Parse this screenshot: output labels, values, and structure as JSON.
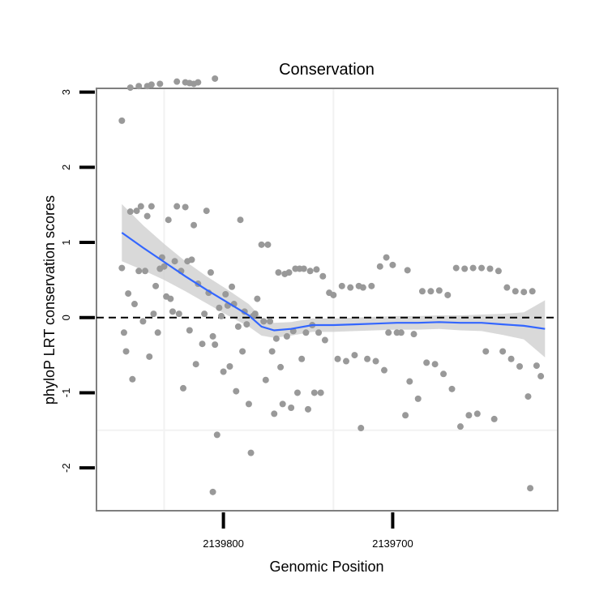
{
  "chart_data": {
    "type": "scatter",
    "title": "Conservation",
    "xlabel": "Genomic Position",
    "ylabel": "phyloP LRT conservation scores",
    "x_ticks": [
      {
        "label": "2139800",
        "value": 0.24
      },
      {
        "label": "2139700",
        "value": 0.64
      }
    ],
    "y_ticks": [
      -2,
      -1,
      0,
      1,
      2,
      3
    ],
    "xlim": [
      -0.06,
      1.03
    ],
    "ylim": [
      -2.57,
      3.05
    ],
    "reference_line": {
      "y": 0,
      "style": "dashed"
    },
    "colors": {
      "points": "#999999",
      "smooth_line": "#3366ff",
      "band": "#cccccc",
      "panel_border": "#7f7f7f",
      "grid": "#f2f2f2"
    },
    "points": [
      [
        0.0,
        2.62
      ],
      [
        0.02,
        3.06
      ],
      [
        0.04,
        3.08
      ],
      [
        0.06,
        3.08
      ],
      [
        0.07,
        3.1
      ],
      [
        0.09,
        3.11
      ],
      [
        0.13,
        3.14
      ],
      [
        0.15,
        3.13
      ],
      [
        0.16,
        3.12
      ],
      [
        0.17,
        3.11
      ],
      [
        0.18,
        3.13
      ],
      [
        0.22,
        3.18
      ],
      [
        0.0,
        0.66
      ],
      [
        0.005,
        -0.2
      ],
      [
        0.01,
        -0.45
      ],
      [
        0.015,
        0.32
      ],
      [
        0.02,
        1.41
      ],
      [
        0.025,
        -0.82
      ],
      [
        0.03,
        0.18
      ],
      [
        0.035,
        1.42
      ],
      [
        0.04,
        0.62
      ],
      [
        0.045,
        1.48
      ],
      [
        0.05,
        -0.05
      ],
      [
        0.055,
        0.62
      ],
      [
        0.06,
        1.35
      ],
      [
        0.065,
        -0.52
      ],
      [
        0.07,
        1.48
      ],
      [
        0.075,
        0.05
      ],
      [
        0.08,
        0.42
      ],
      [
        0.085,
        -0.2
      ],
      [
        0.09,
        0.65
      ],
      [
        0.095,
        0.8
      ],
      [
        0.1,
        0.68
      ],
      [
        0.105,
        0.28
      ],
      [
        0.11,
        1.3
      ],
      [
        0.115,
        0.25
      ],
      [
        0.12,
        0.08
      ],
      [
        0.125,
        0.75
      ],
      [
        0.13,
        1.48
      ],
      [
        0.135,
        0.05
      ],
      [
        0.14,
        0.62
      ],
      [
        0.145,
        -0.94
      ],
      [
        0.15,
        1.47
      ],
      [
        0.155,
        0.75
      ],
      [
        0.16,
        -0.17
      ],
      [
        0.165,
        0.77
      ],
      [
        0.17,
        1.23
      ],
      [
        0.175,
        -0.62
      ],
      [
        0.18,
        0.45
      ],
      [
        0.19,
        -0.35
      ],
      [
        0.195,
        0.05
      ],
      [
        0.2,
        1.42
      ],
      [
        0.205,
        0.33
      ],
      [
        0.21,
        0.6
      ],
      [
        0.215,
        -0.25
      ],
      [
        0.22,
        -0.36
      ],
      [
        0.225,
        -1.56
      ],
      [
        0.23,
        0.13
      ],
      [
        0.235,
        0.02
      ],
      [
        0.24,
        -0.72
      ],
      [
        0.245,
        0.31
      ],
      [
        0.25,
        0.16
      ],
      [
        0.255,
        -0.65
      ],
      [
        0.26,
        0.41
      ],
      [
        0.265,
        0.18
      ],
      [
        0.27,
        -0.98
      ],
      [
        0.275,
        -0.12
      ],
      [
        0.28,
        1.3
      ],
      [
        0.285,
        -0.45
      ],
      [
        0.29,
        0.08
      ],
      [
        0.295,
        -0.09
      ],
      [
        0.3,
        -1.15
      ],
      [
        0.305,
        -1.8
      ],
      [
        0.31,
        0.02
      ],
      [
        0.315,
        0.05
      ],
      [
        0.32,
        0.25
      ],
      [
        0.33,
        0.97
      ],
      [
        0.335,
        -0.05
      ],
      [
        0.34,
        -0.83
      ],
      [
        0.345,
        0.97
      ],
      [
        0.35,
        -0.05
      ],
      [
        0.355,
        -0.45
      ],
      [
        0.36,
        -1.28
      ],
      [
        0.365,
        -0.28
      ],
      [
        0.37,
        0.6
      ],
      [
        0.375,
        -0.66
      ],
      [
        0.38,
        -1.15
      ],
      [
        0.385,
        0.58
      ],
      [
        0.39,
        -0.25
      ],
      [
        0.395,
        0.6
      ],
      [
        0.4,
        -1.2
      ],
      [
        0.405,
        -0.18
      ],
      [
        0.41,
        0.65
      ],
      [
        0.415,
        -1.0
      ],
      [
        0.42,
        0.65
      ],
      [
        0.425,
        -0.55
      ],
      [
        0.43,
        0.65
      ],
      [
        0.435,
        -0.2
      ],
      [
        0.44,
        -1.22
      ],
      [
        0.445,
        0.62
      ],
      [
        0.45,
        -0.1
      ],
      [
        0.455,
        -1.0
      ],
      [
        0.46,
        0.64
      ],
      [
        0.465,
        -0.2
      ],
      [
        0.47,
        -1.0
      ],
      [
        0.475,
        0.55
      ],
      [
        0.48,
        -0.3
      ],
      [
        0.49,
        0.33
      ],
      [
        0.5,
        0.3
      ],
      [
        0.51,
        -0.55
      ],
      [
        0.52,
        0.42
      ],
      [
        0.53,
        -0.58
      ],
      [
        0.54,
        0.4
      ],
      [
        0.55,
        -0.5
      ],
      [
        0.56,
        0.42
      ],
      [
        0.565,
        -1.47
      ],
      [
        0.57,
        0.4
      ],
      [
        0.58,
        -0.55
      ],
      [
        0.59,
        0.42
      ],
      [
        0.6,
        -0.58
      ],
      [
        0.61,
        0.68
      ],
      [
        0.62,
        -0.7
      ],
      [
        0.625,
        0.8
      ],
      [
        0.63,
        -0.2
      ],
      [
        0.64,
        0.7
      ],
      [
        0.65,
        -0.2
      ],
      [
        0.66,
        -0.2
      ],
      [
        0.67,
        -1.3
      ],
      [
        0.675,
        0.63
      ],
      [
        0.68,
        -0.85
      ],
      [
        0.69,
        -0.22
      ],
      [
        0.7,
        -1.08
      ],
      [
        0.71,
        0.35
      ],
      [
        0.72,
        -0.6
      ],
      [
        0.73,
        0.35
      ],
      [
        0.74,
        -0.62
      ],
      [
        0.75,
        0.36
      ],
      [
        0.76,
        -0.75
      ],
      [
        0.77,
        0.3
      ],
      [
        0.78,
        -0.95
      ],
      [
        0.79,
        0.66
      ],
      [
        0.8,
        -1.45
      ],
      [
        0.81,
        0.65
      ],
      [
        0.82,
        -1.3
      ],
      [
        0.83,
        0.66
      ],
      [
        0.84,
        -1.28
      ],
      [
        0.85,
        0.66
      ],
      [
        0.86,
        -0.45
      ],
      [
        0.87,
        0.65
      ],
      [
        0.88,
        -1.35
      ],
      [
        0.89,
        0.62
      ],
      [
        0.9,
        -0.45
      ],
      [
        0.91,
        0.4
      ],
      [
        0.92,
        -0.55
      ],
      [
        0.93,
        0.35
      ],
      [
        0.94,
        -0.65
      ],
      [
        0.95,
        0.34
      ],
      [
        0.96,
        -1.05
      ],
      [
        0.965,
        -2.27
      ],
      [
        0.97,
        0.35
      ],
      [
        0.98,
        -0.64
      ],
      [
        0.99,
        -0.78
      ],
      [
        0.215,
        -2.32
      ]
    ],
    "smooth_line": [
      [
        0.0,
        1.13
      ],
      [
        0.05,
        0.93
      ],
      [
        0.1,
        0.74
      ],
      [
        0.15,
        0.55
      ],
      [
        0.2,
        0.37
      ],
      [
        0.25,
        0.2
      ],
      [
        0.3,
        0.03
      ],
      [
        0.33,
        -0.12
      ],
      [
        0.36,
        -0.17
      ],
      [
        0.4,
        -0.15
      ],
      [
        0.45,
        -0.1
      ],
      [
        0.5,
        -0.1
      ],
      [
        0.55,
        -0.09
      ],
      [
        0.6,
        -0.08
      ],
      [
        0.65,
        -0.07
      ],
      [
        0.7,
        -0.07
      ],
      [
        0.75,
        -0.06
      ],
      [
        0.8,
        -0.07
      ],
      [
        0.85,
        -0.07
      ],
      [
        0.9,
        -0.09
      ],
      [
        0.95,
        -0.11
      ],
      [
        1.0,
        -0.15
      ]
    ],
    "band_width": [
      0.38,
      0.3,
      0.24,
      0.2,
      0.18,
      0.17,
      0.15,
      0.12,
      0.1,
      0.09,
      0.09,
      0.09,
      0.09,
      0.09,
      0.09,
      0.09,
      0.09,
      0.1,
      0.11,
      0.14,
      0.18,
      0.38
    ]
  }
}
